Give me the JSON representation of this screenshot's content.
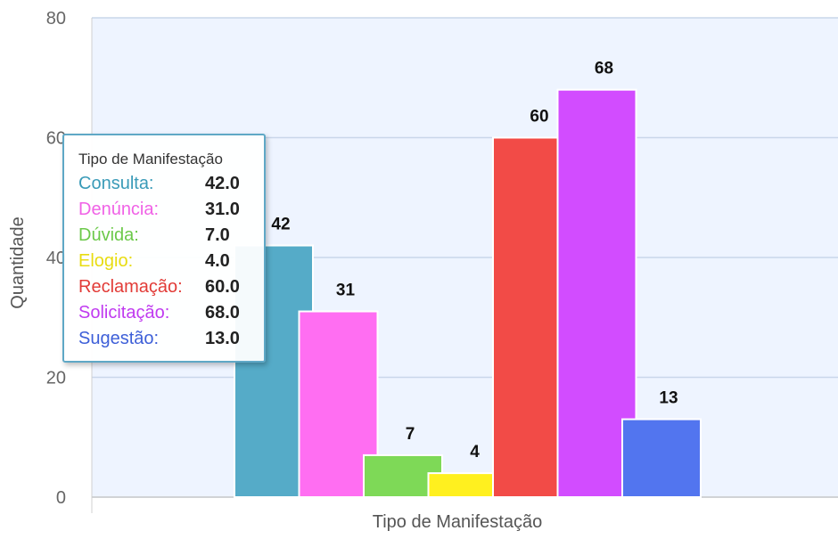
{
  "chart_data": {
    "type": "bar",
    "xlabel": "Tipo de Manifestação",
    "ylabel": "Quantidade",
    "ylim": [
      0,
      80
    ],
    "yticks": [
      0,
      20,
      40,
      60,
      80
    ],
    "grid": true,
    "series": [
      {
        "name": "Consulta",
        "value": 42,
        "label": "42",
        "tooltip_value": "42.0",
        "color": "#55abc8",
        "tooltip_color": "#3a9bb8"
      },
      {
        "name": "Denúncia",
        "value": 31,
        "label": "31",
        "tooltip_value": "31.0",
        "color": "#ff6ef2",
        "tooltip_color": "#f062e6"
      },
      {
        "name": "Dúvida",
        "value": 7,
        "label": "7",
        "tooltip_value": "7.0",
        "color": "#7ed957",
        "tooltip_color": "#6cc94a"
      },
      {
        "name": "Elogio",
        "value": 4,
        "label": "4",
        "tooltip_value": "4.0",
        "color": "#fff01f",
        "tooltip_color": "#e8dc10"
      },
      {
        "name": "Reclamação",
        "value": 60,
        "label": "60",
        "tooltip_value": "60.0",
        "color": "#f24b47",
        "tooltip_color": "#e23b37"
      },
      {
        "name": "Solicitação",
        "value": 68,
        "label": "68",
        "tooltip_value": "68.0",
        "color": "#d24cff",
        "tooltip_color": "#c03af0"
      },
      {
        "name": "Sugestão",
        "value": 13,
        "label": "13",
        "tooltip_value": "13.0",
        "color": "#5275ef",
        "tooltip_color": "#3d5fd8"
      }
    ]
  },
  "tooltip": {
    "header": "Tipo de Manifestação"
  },
  "colors": {
    "plot_background": "#eef4ff",
    "gridline": "#c9d6ea"
  }
}
